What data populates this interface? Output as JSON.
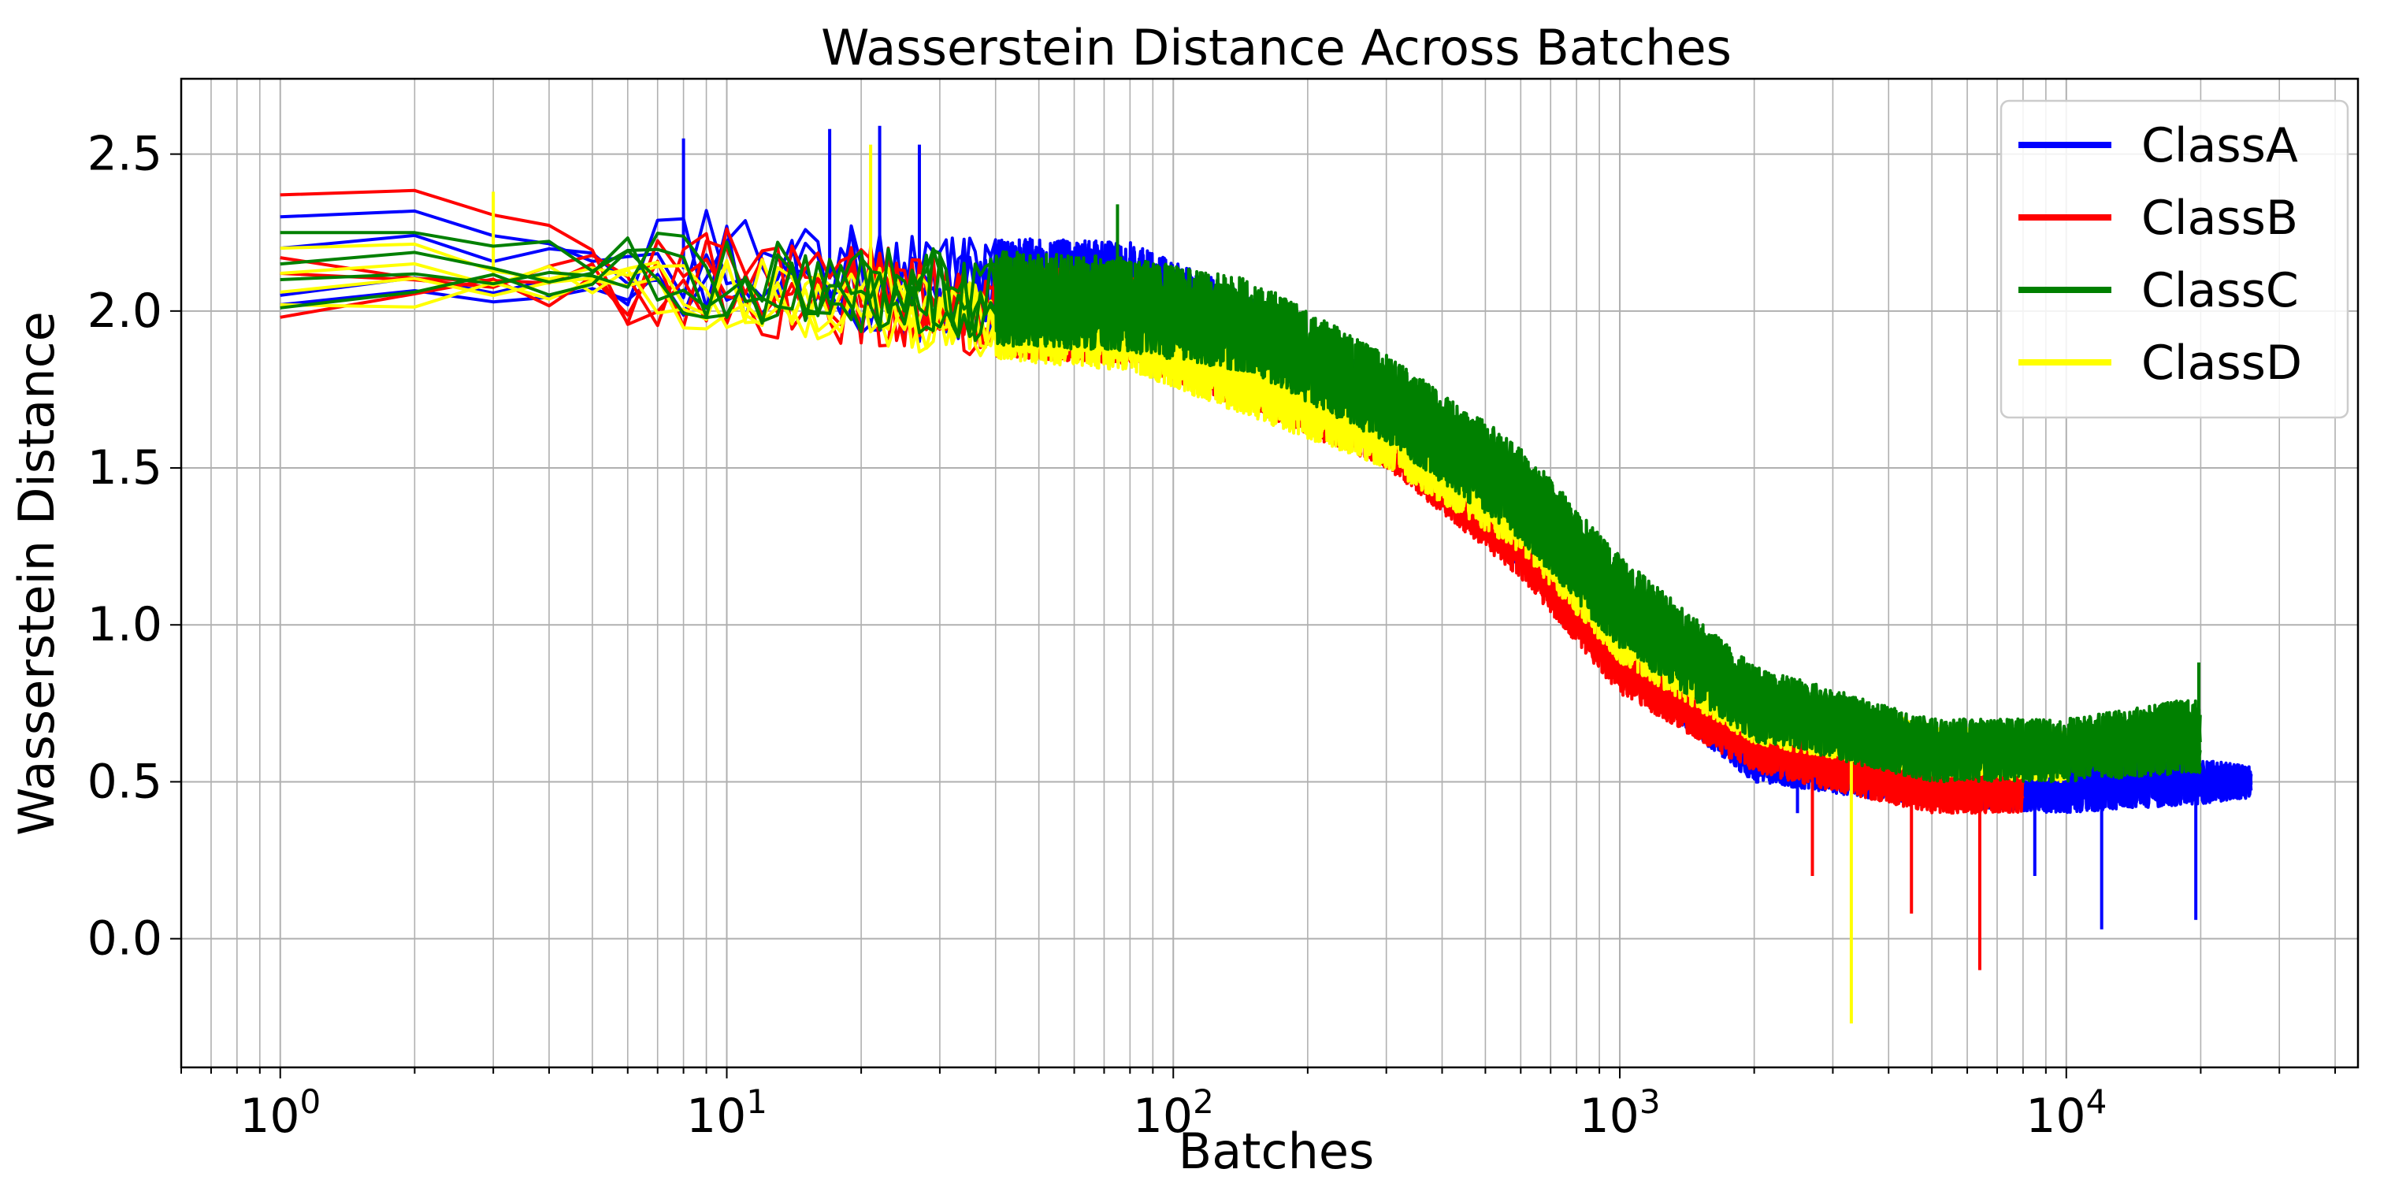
{
  "chart_data": {
    "type": "line",
    "title": "Wasserstein Distance Across Batches",
    "xlabel": "Batches",
    "ylabel": "Wasserstein Distance",
    "xscale": "log",
    "xlim": [
      0.6,
      45000
    ],
    "ylim": [
      -0.41,
      2.74
    ],
    "grid": true,
    "legend_position": "top-right",
    "x_ticks": [
      {
        "value": 1,
        "base": "10",
        "exp": "0"
      },
      {
        "value": 10,
        "base": "10",
        "exp": "1"
      },
      {
        "value": 100,
        "base": "10",
        "exp": "2"
      },
      {
        "value": 1000,
        "base": "10",
        "exp": "3"
      },
      {
        "value": 10000,
        "base": "10",
        "exp": "4"
      }
    ],
    "y_ticks": [
      {
        "value": 0.0,
        "label": "0.0"
      },
      {
        "value": 0.5,
        "label": "0.5"
      },
      {
        "value": 1.0,
        "label": "1.0"
      },
      {
        "value": 1.5,
        "label": "1.5"
      },
      {
        "value": 2.0,
        "label": "2.0"
      },
      {
        "value": 2.5,
        "label": "2.5"
      }
    ],
    "x_key_points": [
      1,
      3,
      10,
      30,
      80,
      150,
      300,
      600,
      1000,
      2000,
      5000,
      10000,
      20000,
      26000
    ],
    "series": [
      {
        "name": "ClassA",
        "color": "#0000ff",
        "runs": 4,
        "max_batch": 26000,
        "mean": [
          2.15,
          2.15,
          2.13,
          2.07,
          2.08,
          1.93,
          1.68,
          1.28,
          0.93,
          0.6,
          0.5,
          0.48,
          0.5,
          0.5
        ],
        "spread": [
          0.15,
          0.16,
          0.2,
          0.17,
          0.14,
          0.12,
          0.1,
          0.1,
          0.1,
          0.1,
          0.08,
          0.08,
          0.07,
          0.05
        ],
        "start_values": [
          2.3,
          2.2,
          2.05,
          2.02
        ],
        "spikes": [
          {
            "x": 8,
            "y": 2.55
          },
          {
            "x": 17,
            "y": 2.58
          },
          {
            "x": 22,
            "y": 2.59
          },
          {
            "x": 27,
            "y": 2.53
          },
          {
            "x": 2500,
            "y": 0.4
          },
          {
            "x": 8500,
            "y": 0.2
          },
          {
            "x": 12000,
            "y": 0.03
          },
          {
            "x": 19500,
            "y": 0.06
          }
        ]
      },
      {
        "name": "ClassB",
        "color": "#ff0000",
        "runs": 4,
        "max_batch": 8000,
        "mean": [
          2.15,
          2.14,
          2.1,
          2.02,
          1.97,
          1.8,
          1.6,
          1.25,
          0.88,
          0.62,
          0.47,
          0.47,
          0.47,
          0.47
        ],
        "spread": [
          0.2,
          0.18,
          0.17,
          0.16,
          0.14,
          0.12,
          0.1,
          0.1,
          0.1,
          0.09,
          0.07,
          0.07,
          0.07,
          0.07
        ],
        "start_values": [
          2.37,
          2.17,
          2.12,
          1.98
        ],
        "spikes": [
          {
            "x": 2700,
            "y": 0.2
          },
          {
            "x": 4500,
            "y": 0.08
          },
          {
            "x": 6400,
            "y": -0.1
          }
        ]
      },
      {
        "name": "ClassC",
        "color": "#008000",
        "runs": 4,
        "max_batch": 20000,
        "mean": [
          2.15,
          2.15,
          2.1,
          2.05,
          2.02,
          1.95,
          1.72,
          1.42,
          1.07,
          0.75,
          0.6,
          0.6,
          0.65,
          0.65
        ],
        "spread": [
          0.14,
          0.15,
          0.13,
          0.15,
          0.15,
          0.15,
          0.14,
          0.15,
          0.15,
          0.12,
          0.1,
          0.1,
          0.12,
          0.12
        ],
        "start_values": [
          2.25,
          2.15,
          2.1,
          2.01
        ],
        "spikes": [
          {
            "x": 75,
            "y": 2.34
          },
          {
            "x": 19800,
            "y": 0.88
          }
        ]
      },
      {
        "name": "ClassD",
        "color": "#ffff00",
        "runs": 4,
        "max_batch": 10000,
        "mean": [
          2.1,
          2.12,
          2.05,
          2.0,
          1.93,
          1.78,
          1.62,
          1.35,
          1.0,
          0.72,
          0.6,
          0.58,
          0.58,
          0.58
        ],
        "spread": [
          0.12,
          0.12,
          0.12,
          0.14,
          0.12,
          0.12,
          0.12,
          0.12,
          0.12,
          0.1,
          0.08,
          0.08,
          0.08,
          0.08
        ],
        "start_values": [
          2.2,
          2.12,
          2.06,
          2.02
        ],
        "spikes": [
          {
            "x": 3,
            "y": 2.38
          },
          {
            "x": 21,
            "y": 2.53
          },
          {
            "x": 3300,
            "y": -0.27
          }
        ]
      }
    ]
  }
}
